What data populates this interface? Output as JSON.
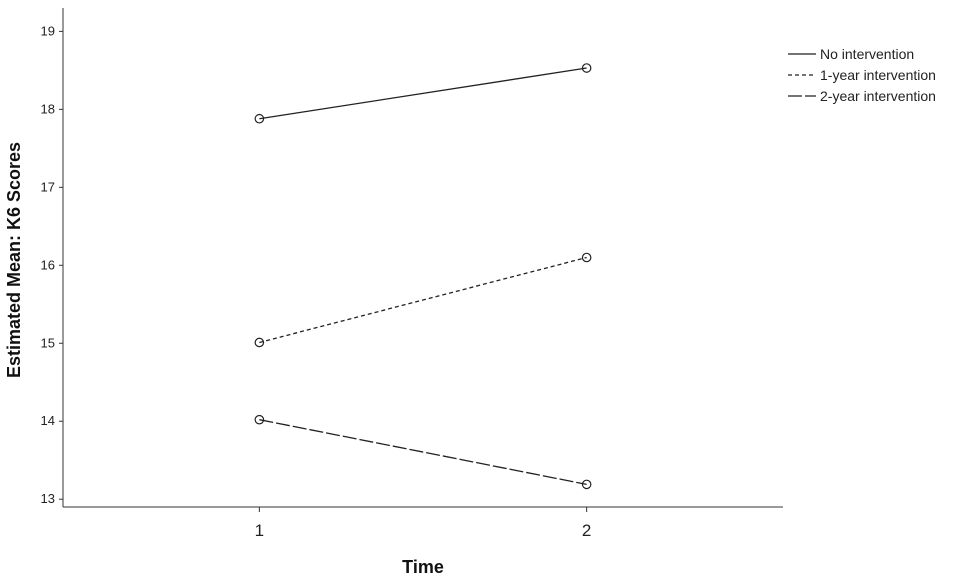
{
  "chart_data": {
    "type": "line",
    "title": "",
    "xlabel": "Time",
    "ylabel": "Estimated Mean: K6 Scores",
    "x": [
      1,
      2
    ],
    "x_tick_labels": [
      "1",
      "2"
    ],
    "y_ticks": [
      13,
      14,
      15,
      16,
      17,
      18,
      19
    ],
    "ylim": [
      12.9,
      19.3
    ],
    "xlim": [
      0.4,
      2.6
    ],
    "grid": false,
    "legend": "top-right",
    "series": [
      {
        "name": "No intervention",
        "values": [
          17.88,
          18.53
        ],
        "dash": "solid",
        "color": "#222222"
      },
      {
        "name": "1-year intervention",
        "values": [
          15.01,
          16.1
        ],
        "dash": "dotted",
        "color": "#222222"
      },
      {
        "name": "2-year intervention",
        "values": [
          14.02,
          13.19
        ],
        "dash": "dashed",
        "color": "#222222"
      }
    ]
  }
}
